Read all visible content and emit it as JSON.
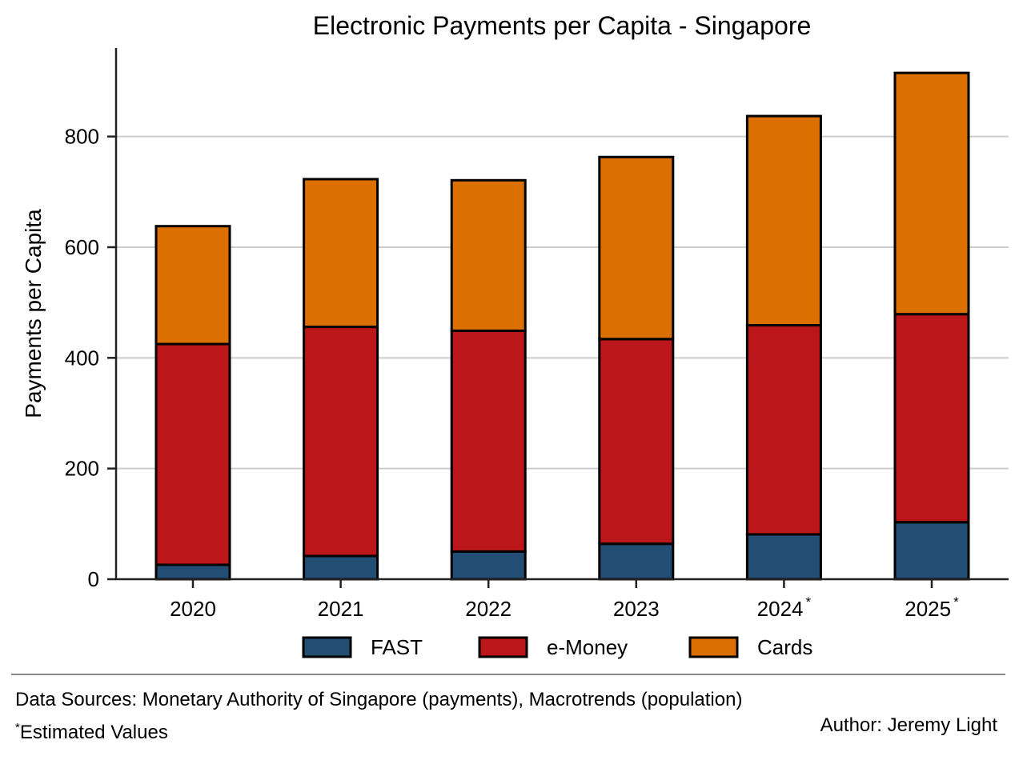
{
  "chart_data": {
    "type": "bar",
    "stacked": true,
    "title": "Electronic Payments per Capita - Singapore",
    "xlabel": "",
    "ylabel": "Payments per Capita",
    "categories": [
      "2020",
      "2021",
      "2022",
      "2023",
      "2024",
      "2025"
    ],
    "category_markers": [
      "",
      "",
      "",
      "",
      "*",
      "*"
    ],
    "series": [
      {
        "name": "FAST",
        "color": "#234e73",
        "values": [
          26,
          42,
          50,
          64,
          81,
          103
        ]
      },
      {
        "name": "e-Money",
        "color": "#bb1619",
        "values": [
          399,
          414,
          399,
          370,
          378,
          376
        ]
      },
      {
        "name": "Cards",
        "color": "#db7000",
        "values": [
          213,
          267,
          272,
          329,
          378,
          436
        ]
      }
    ],
    "ylim": [
      0,
      960
    ],
    "yticks": [
      0,
      200,
      400,
      600,
      800
    ],
    "grid": "horizontal",
    "legend_position": "bottom"
  },
  "footer": {
    "sources": "Data Sources: Monetary Authority of Singapore (payments), Macrotrends (population)",
    "note_marker": "*",
    "note": "Estimated Values",
    "author": "Author: Jeremy Light"
  }
}
